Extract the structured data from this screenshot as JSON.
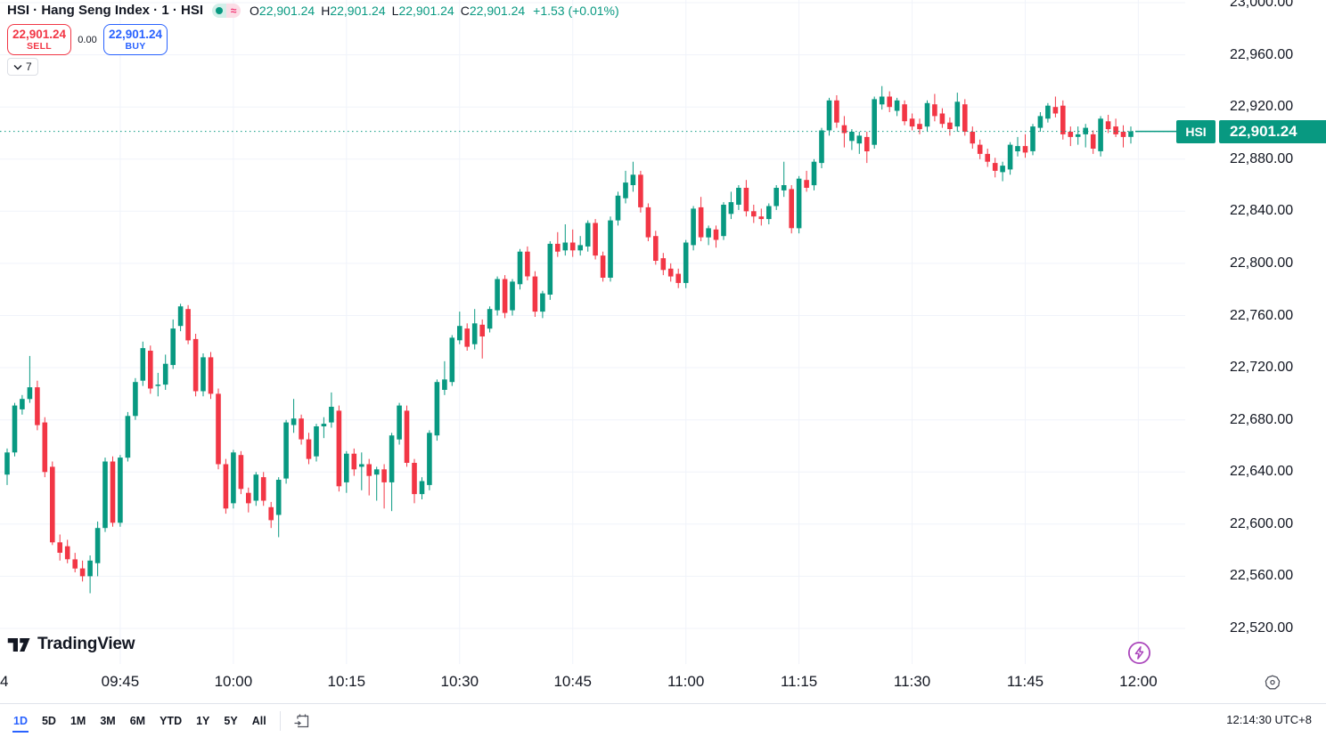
{
  "header": {
    "symbol_title": "HSI · Hang Seng Index · 1 · HSI",
    "market_status_badges": [
      "market-open-dot",
      "approximate-values"
    ],
    "ohlc": {
      "o_label": "O",
      "o": "22,901.24",
      "h_label": "H",
      "h": "22,901.24",
      "l_label": "L",
      "l": "22,901.24",
      "c_label": "C",
      "c": "22,901.24",
      "change": "+1.53 (+0.01%)"
    },
    "sell_button": {
      "price": "22,901.24",
      "label": "SELL"
    },
    "spread": "0.00",
    "buy_button": {
      "price": "22,901.24",
      "label": "BUY"
    },
    "object_tree_count": "7"
  },
  "attribution": {
    "logo_text": "TradingView"
  },
  "price_axis": {
    "last": {
      "symbol": "HSI",
      "price": "22,901.24"
    },
    "ticks": [
      {
        "value": 23000,
        "label": "23,000.00"
      },
      {
        "value": 22960,
        "label": "22,960.00"
      },
      {
        "value": 22920,
        "label": "22,920.00"
      },
      {
        "value": 22880,
        "label": "22,880.00"
      },
      {
        "value": 22840,
        "label": "22,840.00"
      },
      {
        "value": 22800,
        "label": "22,800.00"
      },
      {
        "value": 22760,
        "label": "22,760.00"
      },
      {
        "value": 22720,
        "label": "22,720.00"
      },
      {
        "value": 22680,
        "label": "22,680.00"
      },
      {
        "value": 22640,
        "label": "22,640.00"
      },
      {
        "value": 22600,
        "label": "22,600.00"
      },
      {
        "value": 22560,
        "label": "22,560.00"
      },
      {
        "value": 22520,
        "label": "22,520.00"
      }
    ]
  },
  "time_axis": {
    "edge_label": "4",
    "ticks": [
      {
        "label": "09:45",
        "min": 15
      },
      {
        "label": "10:00",
        "min": 30
      },
      {
        "label": "10:15",
        "min": 45
      },
      {
        "label": "10:30",
        "min": 60
      },
      {
        "label": "10:45",
        "min": 75
      },
      {
        "label": "11:00",
        "min": 90
      },
      {
        "label": "11:15",
        "min": 105
      },
      {
        "label": "11:30",
        "min": 120
      },
      {
        "label": "11:45",
        "min": 135
      },
      {
        "label": "12:00",
        "min": 150
      }
    ]
  },
  "toolbar": {
    "ranges": [
      "1D",
      "5D",
      "1M",
      "3M",
      "6M",
      "YTD",
      "1Y",
      "5Y",
      "All"
    ],
    "active_range": "1D"
  },
  "status": {
    "clock": "12:14:30 UTC+8"
  },
  "colors": {
    "up": "#089981",
    "down": "#f23645",
    "accent_blue": "#2962ff",
    "text": "#131722",
    "grid": "#f0f3fa",
    "purple_icon": "#ab47bc"
  },
  "chart_data": {
    "type": "candlestick",
    "symbol": "HSI",
    "title": "Hang Seng Index, 1 minute",
    "interval": "1m",
    "timezone": "UTC+8",
    "session_start": "09:30",
    "current_price": 22901.24,
    "price_axis_range": [
      22500,
      23005
    ],
    "grid": true,
    "candles_ohlc": [
      [
        22638,
        22658,
        22630,
        22655
      ],
      [
        22655,
        22693,
        22652,
        22691
      ],
      [
        22688,
        22699,
        22684,
        22696
      ],
      [
        22696,
        22729,
        22693,
        22705
      ],
      [
        22705,
        22710,
        22672,
        22676
      ],
      [
        22678,
        22682,
        22636,
        22640
      ],
      [
        22644,
        22648,
        22584,
        22586
      ],
      [
        22586,
        22592,
        22572,
        22578
      ],
      [
        22583,
        22588,
        22570,
        22573
      ],
      [
        22573,
        22578,
        22563,
        22566
      ],
      [
        22566,
        22572,
        22556,
        22560
      ],
      [
        22560,
        22576,
        22547,
        22572
      ],
      [
        22570,
        22602,
        22560,
        22597
      ],
      [
        22597,
        22651,
        22594,
        22648
      ],
      [
        22648,
        22652,
        22598,
        22601
      ],
      [
        22601,
        22653,
        22598,
        22651
      ],
      [
        22651,
        22686,
        22648,
        22683
      ],
      [
        22683,
        22712,
        22680,
        22709
      ],
      [
        22710,
        22740,
        22706,
        22735
      ],
      [
        22733,
        22737,
        22700,
        22704
      ],
      [
        22706,
        22716,
        22698,
        22707
      ],
      [
        22707,
        22730,
        22703,
        22723
      ],
      [
        22722,
        22757,
        22719,
        22750
      ],
      [
        22752,
        22769,
        22748,
        22767
      ],
      [
        22765,
        22768,
        22738,
        22741
      ],
      [
        22742,
        22746,
        22698,
        22702
      ],
      [
        22702,
        22731,
        22698,
        22728
      ],
      [
        22728,
        22732,
        22696,
        22700
      ],
      [
        22700,
        22704,
        22642,
        22646
      ],
      [
        22646,
        22650,
        22608,
        22612
      ],
      [
        22616,
        22657,
        22612,
        22655
      ],
      [
        22653,
        22656,
        22623,
        22627
      ],
      [
        22624,
        22628,
        22609,
        22616
      ],
      [
        22618,
        22640,
        22614,
        22638
      ],
      [
        22636,
        22640,
        22614,
        22618
      ],
      [
        22613,
        22617,
        22597,
        22603
      ],
      [
        22607,
        22636,
        22590,
        22634
      ],
      [
        22635,
        22680,
        22631,
        22678
      ],
      [
        22676,
        22696,
        22670,
        22681
      ],
      [
        22681,
        22684,
        22661,
        22665
      ],
      [
        22665,
        22670,
        22646,
        22650
      ],
      [
        22652,
        22677,
        22648,
        22675
      ],
      [
        22675,
        22682,
        22666,
        22677
      ],
      [
        22678,
        22701,
        22674,
        22690
      ],
      [
        22687,
        22691,
        22625,
        22629
      ],
      [
        22632,
        22656,
        22624,
        22654
      ],
      [
        22654,
        22658,
        22637,
        22642
      ],
      [
        22644,
        22655,
        22626,
        22646
      ],
      [
        22646,
        22650,
        22622,
        22637
      ],
      [
        22638,
        22644,
        22618,
        22642
      ],
      [
        22642,
        22646,
        22612,
        22632
      ],
      [
        22632,
        22670,
        22610,
        22668
      ],
      [
        22665,
        22693,
        22661,
        22691
      ],
      [
        22687,
        22691,
        22644,
        22647
      ],
      [
        22647,
        22650,
        22616,
        22623
      ],
      [
        22623,
        22636,
        22619,
        22633
      ],
      [
        22630,
        22672,
        22626,
        22670
      ],
      [
        22668,
        22711,
        22664,
        22709
      ],
      [
        22703,
        22725,
        22699,
        22711
      ],
      [
        22709,
        22745,
        22706,
        22743
      ],
      [
        22741,
        22763,
        22738,
        22752
      ],
      [
        22750,
        22754,
        22733,
        22736
      ],
      [
        22738,
        22765,
        22734,
        22754
      ],
      [
        22753,
        22757,
        22727,
        22744
      ],
      [
        22750,
        22767,
        22747,
        22765
      ],
      [
        22764,
        22790,
        22760,
        22788
      ],
      [
        22788,
        22791,
        22758,
        22762
      ],
      [
        22764,
        22788,
        22760,
        22786
      ],
      [
        22784,
        22811,
        22780,
        22809
      ],
      [
        22809,
        22813,
        22787,
        22790
      ],
      [
        22790,
        22794,
        22759,
        22763
      ],
      [
        22763,
        22779,
        22758,
        22777
      ],
      [
        22776,
        22817,
        22772,
        22815
      ],
      [
        22815,
        22824,
        22805,
        22809
      ],
      [
        22810,
        22830,
        22806,
        22816
      ],
      [
        22816,
        22826,
        22805,
        22810
      ],
      [
        22810,
        22821,
        22806,
        22814
      ],
      [
        22813,
        22833,
        22809,
        22831
      ],
      [
        22831,
        22834,
        22803,
        22806
      ],
      [
        22806,
        22809,
        22786,
        22789
      ],
      [
        22789,
        22836,
        22786,
        22833
      ],
      [
        22833,
        22855,
        22829,
        22852
      ],
      [
        22850,
        22871,
        22846,
        22862
      ],
      [
        22860,
        22878,
        22855,
        22868
      ],
      [
        22868,
        22871,
        22839,
        22843
      ],
      [
        22843,
        22846,
        22817,
        22820
      ],
      [
        22821,
        22825,
        22799,
        22802
      ],
      [
        22804,
        22808,
        22791,
        22795
      ],
      [
        22796,
        22800,
        22786,
        22790
      ],
      [
        22792,
        22796,
        22781,
        22785
      ],
      [
        22785,
        22818,
        22781,
        22816
      ],
      [
        22814,
        22844,
        22810,
        22842
      ],
      [
        22843,
        22851,
        22817,
        22820
      ],
      [
        22820,
        22829,
        22814,
        22827
      ],
      [
        22826,
        22829,
        22812,
        22818
      ],
      [
        22821,
        22847,
        22818,
        22845
      ],
      [
        22838,
        22855,
        22834,
        22847
      ],
      [
        22845,
        22860,
        22841,
        22858
      ],
      [
        22858,
        22864,
        22836,
        22840
      ],
      [
        22840,
        22845,
        22831,
        22836
      ],
      [
        22836,
        22842,
        22829,
        22834
      ],
      [
        22834,
        22846,
        22830,
        22844
      ],
      [
        22844,
        22860,
        22841,
        22858
      ],
      [
        22856,
        22878,
        22851,
        22860
      ],
      [
        22857,
        22860,
        22823,
        22827
      ],
      [
        22827,
        22867,
        22823,
        22865
      ],
      [
        22864,
        22871,
        22855,
        22858
      ],
      [
        22860,
        22880,
        22856,
        22878
      ],
      [
        22877,
        22904,
        22873,
        22902
      ],
      [
        22902,
        22927,
        22898,
        22925
      ],
      [
        22925,
        22929,
        22904,
        22908
      ],
      [
        22906,
        22913,
        22889,
        22900
      ],
      [
        22894,
        22903,
        22887,
        22901
      ],
      [
        22892,
        22901,
        22884,
        22898
      ],
      [
        22897,
        22901,
        22877,
        22886
      ],
      [
        22891,
        22928,
        22888,
        22926
      ],
      [
        22922,
        22936,
        22918,
        22928
      ],
      [
        22928,
        22932,
        22916,
        22920
      ],
      [
        22917,
        22927,
        22913,
        22925
      ],
      [
        22922,
        22925,
        22906,
        22909
      ],
      [
        22911,
        22915,
        22902,
        22905
      ],
      [
        22907,
        22911,
        22899,
        22903
      ],
      [
        22905,
        22925,
        22901,
        22923
      ],
      [
        22922,
        22930,
        22909,
        22913
      ],
      [
        22915,
        22919,
        22904,
        22907
      ],
      [
        22908,
        22912,
        22898,
        22903
      ],
      [
        22905,
        22931,
        22901,
        22924
      ],
      [
        22922,
        22926,
        22898,
        22901
      ],
      [
        22901,
        22905,
        22888,
        22892
      ],
      [
        22891,
        22895,
        22880,
        22884
      ],
      [
        22884,
        22888,
        22874,
        22878
      ],
      [
        22877,
        22881,
        22866,
        22871
      ],
      [
        22870,
        22878,
        22863,
        22875
      ],
      [
        22872,
        22893,
        22868,
        22891
      ],
      [
        22886,
        22897,
        22882,
        22890
      ],
      [
        22890,
        22899,
        22881,
        22885
      ],
      [
        22886,
        22907,
        22883,
        22905
      ],
      [
        22904,
        22916,
        22901,
        22913
      ],
      [
        22911,
        22923,
        22908,
        22921
      ],
      [
        22920,
        22928,
        22912,
        22915
      ],
      [
        22921,
        22925,
        22895,
        22899
      ],
      [
        22901,
        22905,
        22890,
        22897
      ],
      [
        22897,
        22905,
        22891,
        22899
      ],
      [
        22899,
        22907,
        22889,
        22904
      ],
      [
        22899,
        22902,
        22884,
        22888
      ],
      [
        22886,
        22913,
        22882,
        22911
      ],
      [
        22909,
        22914,
        22900,
        22903
      ],
      [
        22905,
        22911,
        22897,
        22899
      ],
      [
        22901,
        22906,
        22889,
        22897
      ],
      [
        22897,
        22905,
        22892,
        22901.24
      ]
    ]
  }
}
